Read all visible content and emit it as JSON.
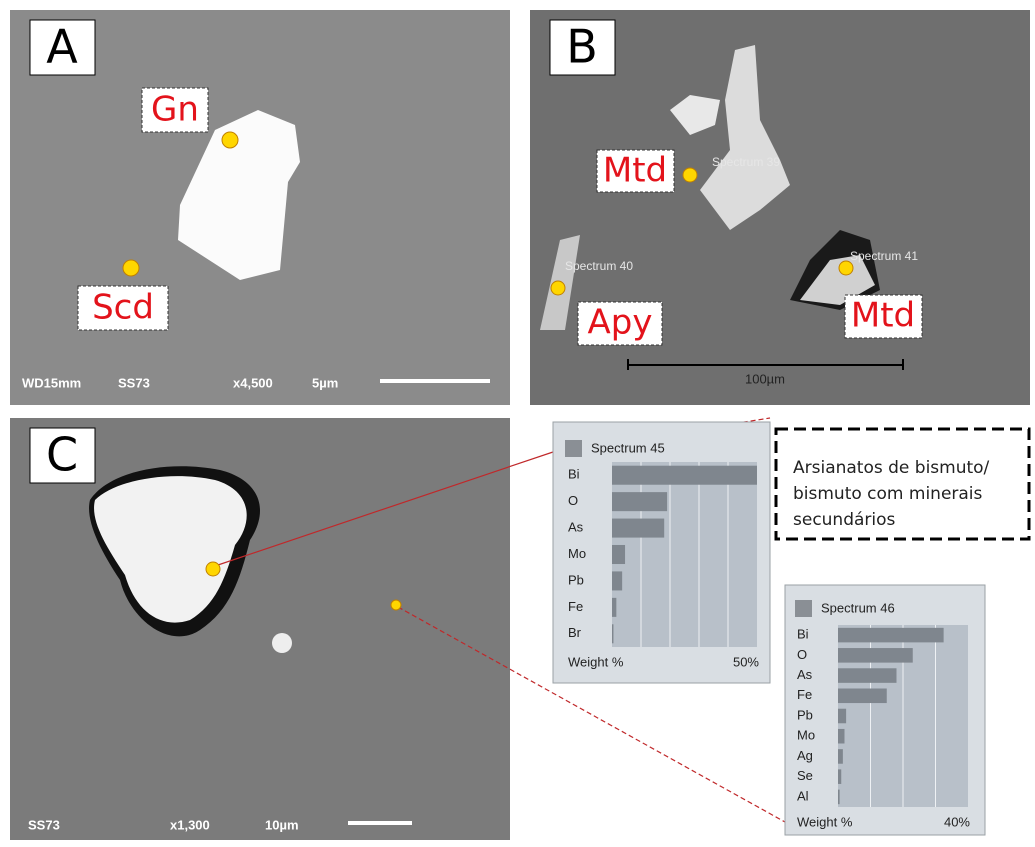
{
  "panels": {
    "a": {
      "letter": "A",
      "labels": [
        "Gn",
        "Scd"
      ],
      "footer": [
        "WD15mm",
        "SS73",
        "x4,500",
        "5µm"
      ]
    },
    "b": {
      "letter": "B",
      "labels": [
        "Mtd",
        "Apy",
        "Mtd"
      ],
      "spectra": [
        "Spectrum 39",
        "Spectrum 40",
        "Spectrum 41"
      ],
      "scale": "100µm"
    },
    "c": {
      "letter": "C",
      "footer": [
        "SS73",
        "x1,300",
        "10µm"
      ]
    }
  },
  "note": [
    "Arsianatos de bismuto/",
    "bismuto com minerais",
    "secundários"
  ],
  "chart_data": [
    {
      "type": "bar",
      "title": "Spectrum 45",
      "xlabel": "Weight %",
      "color": "#7f868e",
      "categories": [
        "Bi",
        "O",
        "As",
        "Mo",
        "Pb",
        "Fe",
        "Br"
      ],
      "values": [
        50,
        19,
        18,
        4.5,
        3.5,
        1.5,
        0.5
      ],
      "xlim": [
        0,
        50
      ],
      "xticks": [
        {
          "value": 50,
          "label": "50%"
        }
      ],
      "xgrid": [
        10,
        20,
        30,
        40
      ]
    },
    {
      "type": "bar",
      "title": "Spectrum 46",
      "xlabel": "Weight %",
      "color": "#7f868e",
      "categories": [
        "Bi",
        "O",
        "As",
        "Fe",
        "Pb",
        "Mo",
        "Ag",
        "Se",
        "Al"
      ],
      "values": [
        32.5,
        23,
        18,
        15,
        2.5,
        2,
        1.5,
        1,
        0.5
      ],
      "xlim": [
        0,
        40
      ],
      "xticks": [
        {
          "value": 40,
          "label": "40%"
        }
      ],
      "xgrid": [
        10,
        20,
        30
      ]
    }
  ]
}
